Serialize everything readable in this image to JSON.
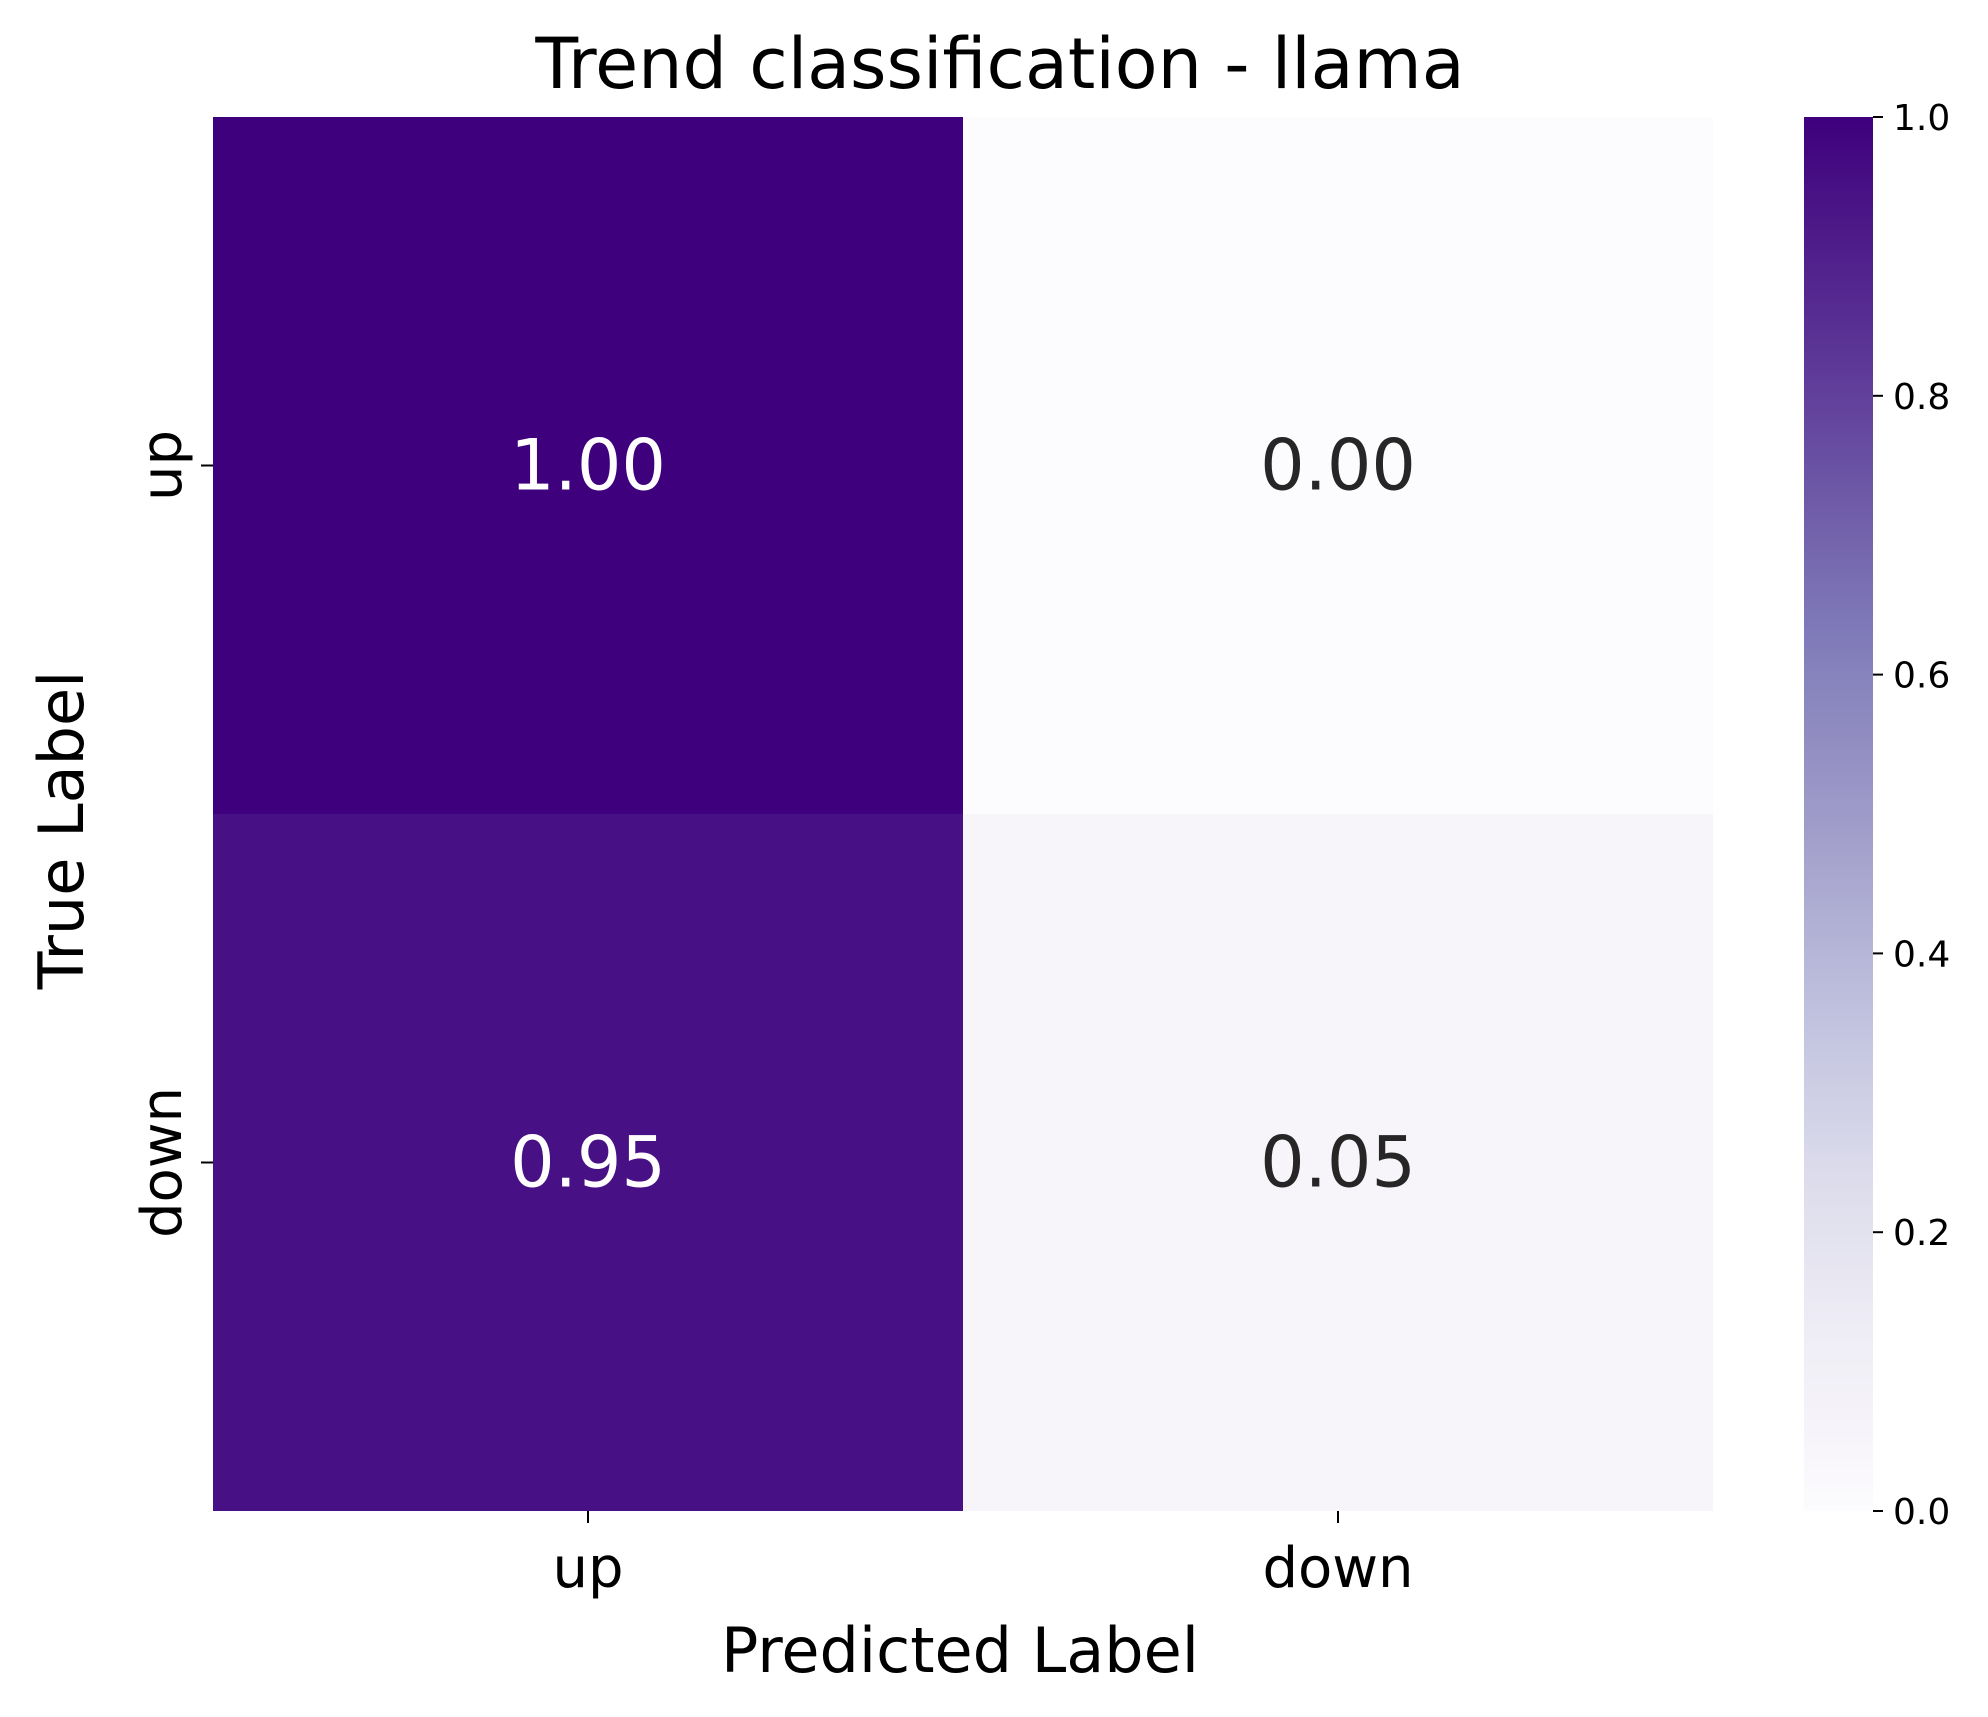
{
  "chart_data": {
    "type": "heatmap",
    "title": "Trend classification - llama",
    "xlabel": "Predicted Label",
    "ylabel": "True Label",
    "x_categories": [
      "up",
      "down"
    ],
    "y_categories": [
      "up",
      "down"
    ],
    "values": [
      [
        1.0,
        0.0
      ],
      [
        0.95,
        0.05
      ]
    ],
    "cell_labels": [
      [
        "1.00",
        "0.00"
      ],
      [
        "0.95",
        "0.05"
      ]
    ],
    "colorbar": {
      "vmin": 0.0,
      "vmax": 1.0,
      "ticks": [
        0.0,
        0.2,
        0.4,
        0.6,
        0.8,
        1.0
      ],
      "tick_labels": [
        "0.0",
        "0.2",
        "0.4",
        "0.6",
        "0.8",
        "1.0"
      ]
    },
    "colormap": "Purples",
    "colors": {
      "low": "#fcfbfd",
      "high": "#3f007d",
      "text_dark": "#262626",
      "text_light": "#ffffff"
    }
  }
}
